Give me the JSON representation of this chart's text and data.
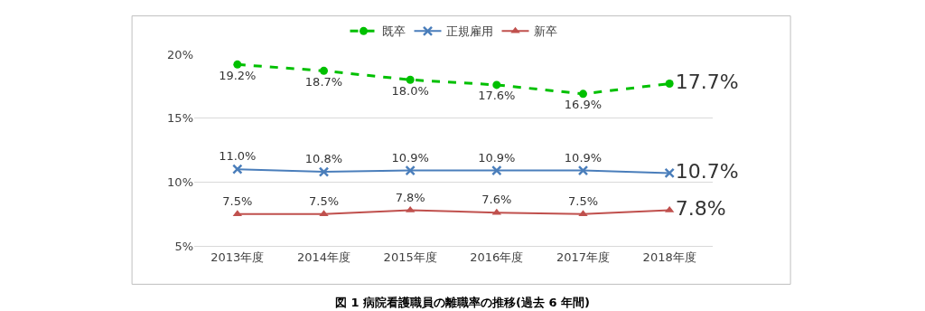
{
  "chart_data": {
    "type": "line",
    "title": "図 1 病院看護職員の離職率の推移(過去 6 年間)",
    "categories": [
      "2013年度",
      "2014年度",
      "2015年度",
      "2016年度",
      "2017年度",
      "2018年度"
    ],
    "series": [
      {
        "name": "既卒",
        "color": "#00c000",
        "values": [
          19.2,
          18.7,
          18.0,
          17.6,
          16.9,
          17.7
        ],
        "marker": "circle",
        "line_style": "dashed",
        "value_labels": [
          "19.2%",
          "18.7%",
          "18.0%",
          "17.6%",
          "16.9%",
          "17.7%"
        ]
      },
      {
        "name": "正規雇用",
        "color": "#4a7ebb",
        "values": [
          11.0,
          10.8,
          10.9,
          10.9,
          10.9,
          10.7
        ],
        "marker": "cross",
        "line_style": "solid",
        "value_labels": [
          "11.0%",
          "10.8%",
          "10.9%",
          "10.9%",
          "10.9%",
          "10.7%"
        ]
      },
      {
        "name": "新卒",
        "color": "#c0504d",
        "values": [
          7.5,
          7.5,
          7.8,
          7.6,
          7.5,
          7.8
        ],
        "marker": "triangle",
        "line_style": "solid",
        "value_labels": [
          "7.5%",
          "7.5%",
          "7.8%",
          "7.6%",
          "7.5%",
          "7.8%"
        ]
      }
    ],
    "ylim": [
      5,
      20
    ],
    "yticks": [
      {
        "value": 5,
        "label": "5%"
      },
      {
        "value": 10,
        "label": "10%"
      },
      {
        "value": 15,
        "label": "15%"
      },
      {
        "value": 20,
        "label": "20%"
      }
    ],
    "grid": "y",
    "legend": "top"
  }
}
